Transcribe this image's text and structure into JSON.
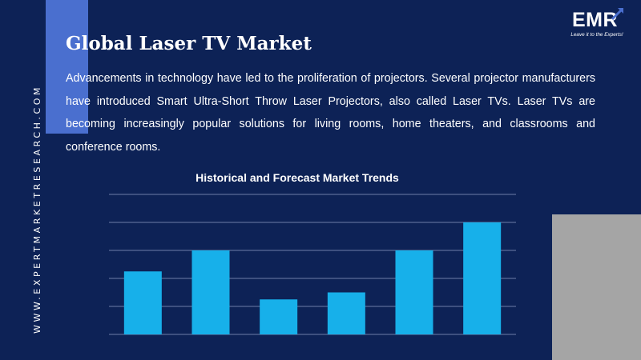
{
  "brand": {
    "side_url": "WWW.EXPERTMARKETRESEARCH.COM",
    "logo_text": "EMR",
    "logo_tagline": "Leave it to the Experts!"
  },
  "title": "Global Laser TV Market",
  "description": "Advancements in technology have led to the proliferation of projectors. Several projector manufacturers have introduced Smart Ultra-Short Throw Laser Projectors, also called Laser TVs. Laser TVs are becoming increasingly popular solutions for living rooms, home theaters, and classrooms and conference rooms.",
  "colors": {
    "background": "#0d2256",
    "accent_block": "#4a6fcf",
    "grey_block": "#a5a5a5",
    "bar": "#17b0ea",
    "gridline": "#6d7fa8",
    "text": "#ffffff"
  },
  "chart_data": {
    "type": "bar",
    "title": "Historical and Forecast Market Trends",
    "categories": [
      "",
      "",
      "",
      "",
      "",
      ""
    ],
    "values": [
      2.25,
      3.0,
      1.25,
      1.5,
      3.0,
      4.0
    ],
    "ylim": [
      0,
      5
    ],
    "gridlines": 5,
    "grid": true,
    "axis_labels_shown": false,
    "xlabel": "",
    "ylabel": ""
  }
}
